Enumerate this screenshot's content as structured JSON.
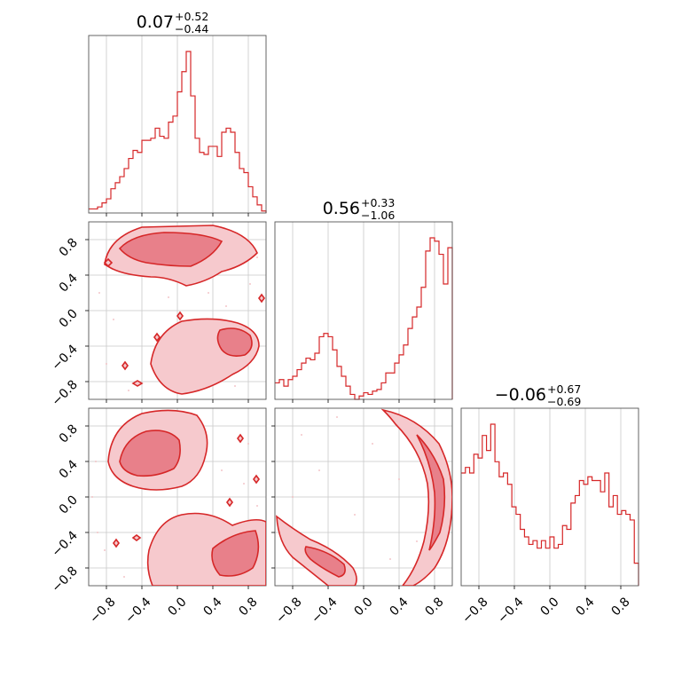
{
  "chart_data": {
    "type": "corner",
    "color": "#d62728",
    "tick_labels": [
      "−0.8",
      "−0.4",
      "0.0",
      "0.4",
      "0.8"
    ],
    "tick_values": [
      -0.8,
      -0.4,
      0.0,
      0.4,
      0.8
    ],
    "range": [
      -1.0,
      1.0
    ],
    "grid": true,
    "parameters": [
      {
        "title_main": "0.07",
        "title_upper": "+0.52",
        "title_lower": "−0.44",
        "median": 0.07,
        "err_plus": 0.52,
        "err_minus": 0.44,
        "histogram": [
          2,
          2,
          3,
          5,
          7,
          12,
          15,
          18,
          22,
          27,
          31,
          30,
          36,
          36,
          37,
          42,
          38,
          37,
          45,
          48,
          60,
          70,
          80,
          58,
          37,
          30,
          29,
          33,
          33,
          28,
          40,
          42,
          40,
          30,
          22,
          20,
          13,
          8,
          4,
          1
        ]
      },
      {
        "title_main": "0.56",
        "title_upper": "+0.33",
        "title_lower": "−1.06",
        "median": 0.56,
        "err_plus": 0.33,
        "err_minus": 1.06,
        "histogram": [
          10,
          12,
          8,
          12,
          14,
          18,
          22,
          25,
          24,
          28,
          38,
          40,
          38,
          30,
          20,
          14,
          8,
          3,
          0,
          2,
          4,
          3,
          5,
          6,
          10,
          16,
          16,
          22,
          27,
          33,
          43,
          50,
          56,
          68,
          90,
          98,
          96,
          88,
          70,
          92
        ]
      },
      {
        "title_main": "−0.06",
        "title_upper": "+0.67",
        "title_lower": "−0.69",
        "median": -0.06,
        "err_plus": 0.67,
        "err_minus": 0.69,
        "histogram": [
          60,
          63,
          60,
          70,
          68,
          80,
          72,
          86,
          66,
          58,
          60,
          54,
          42,
          38,
          30,
          26,
          22,
          24,
          20,
          24,
          20,
          26,
          20,
          22,
          32,
          30,
          44,
          48,
          56,
          54,
          58,
          56,
          56,
          50,
          60,
          42,
          48,
          38,
          40,
          38,
          35,
          12
        ]
      }
    ]
  }
}
